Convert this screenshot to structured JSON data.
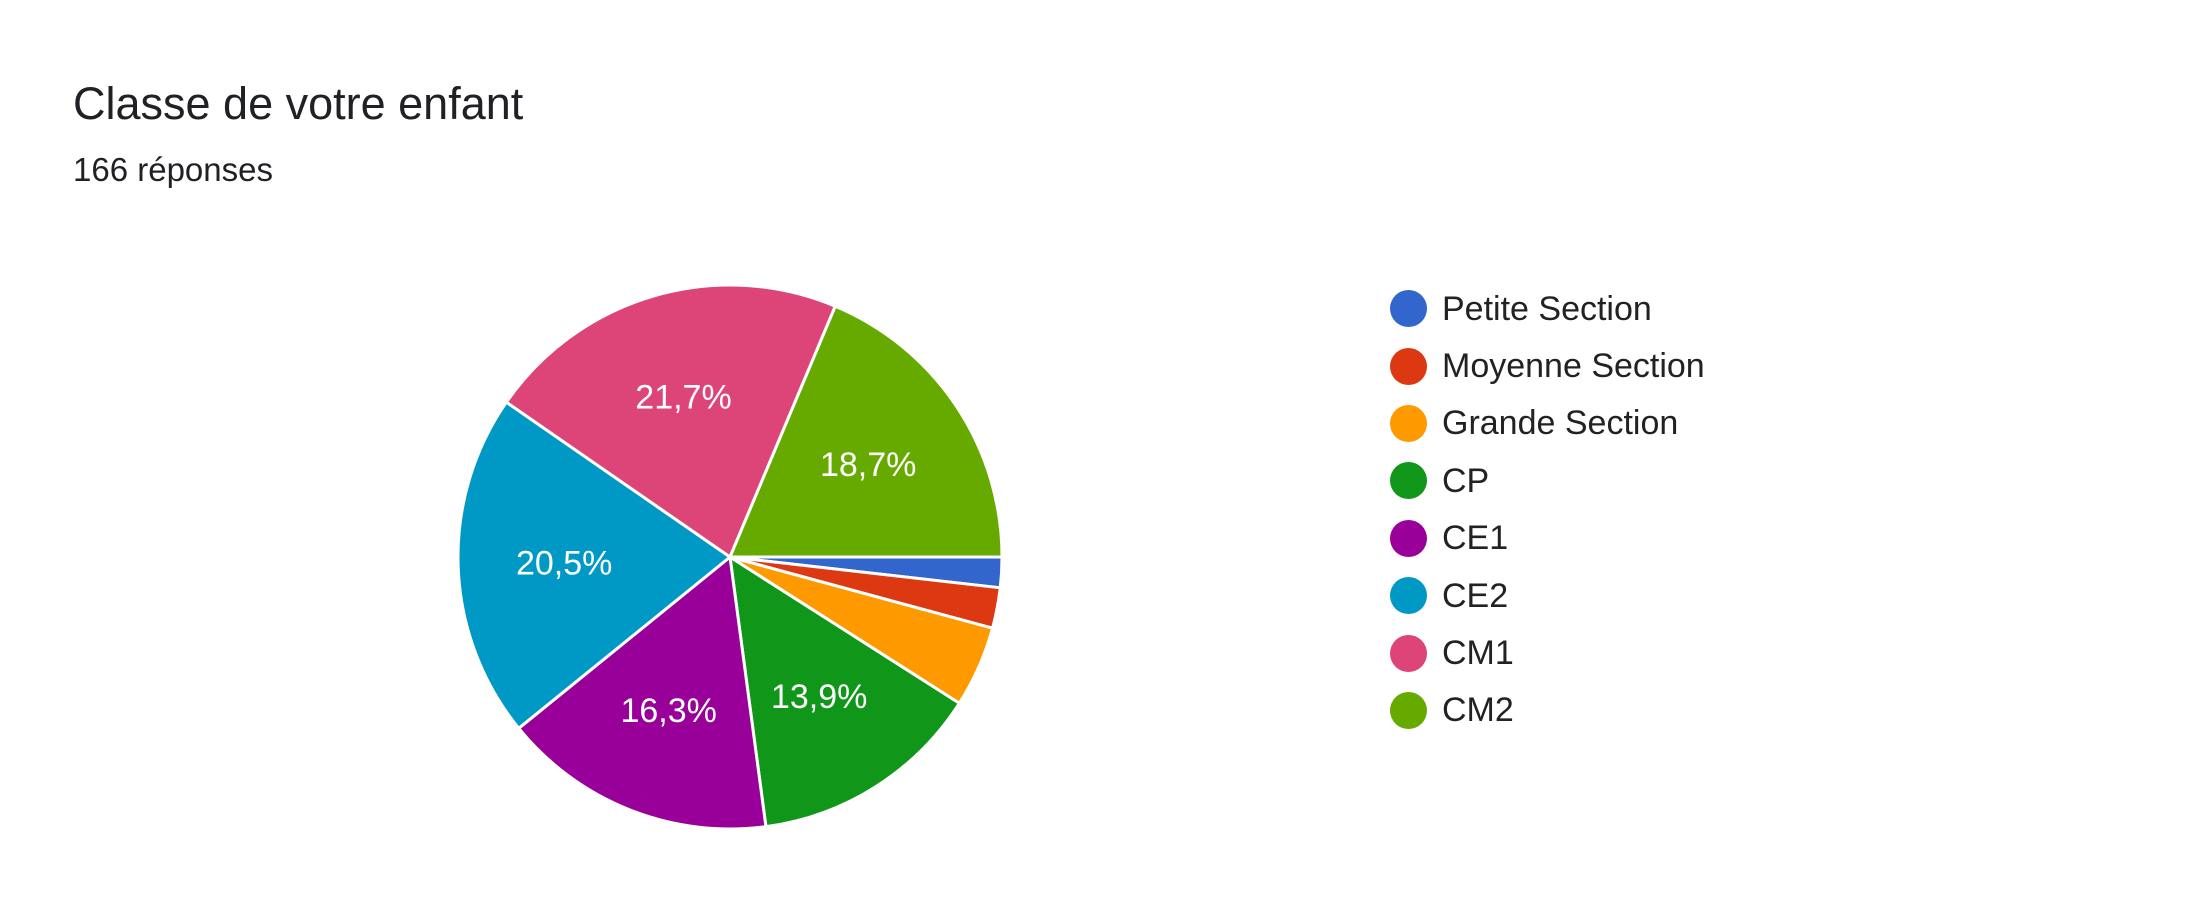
{
  "chart_data": {
    "type": "pie",
    "title": "Classe de votre enfant",
    "subtitle": "166 réponses",
    "legend_position": "right",
    "categories": [
      "Petite Section",
      "Moyenne Section",
      "Grande Section",
      "CP",
      "CE1",
      "CE2",
      "CM1",
      "CM2"
    ],
    "counts": [
      3,
      4,
      8,
      23,
      27,
      34,
      36,
      31
    ],
    "labels": [
      "",
      "",
      "",
      "13,9%",
      "16,3%",
      "20,5%",
      "21,7%",
      "18,7%"
    ],
    "colors": [
      "#3366cc",
      "#dc3912",
      "#ff9900",
      "#109618",
      "#990099",
      "#0099c6",
      "#dd4477",
      "#66aa00"
    ]
  }
}
